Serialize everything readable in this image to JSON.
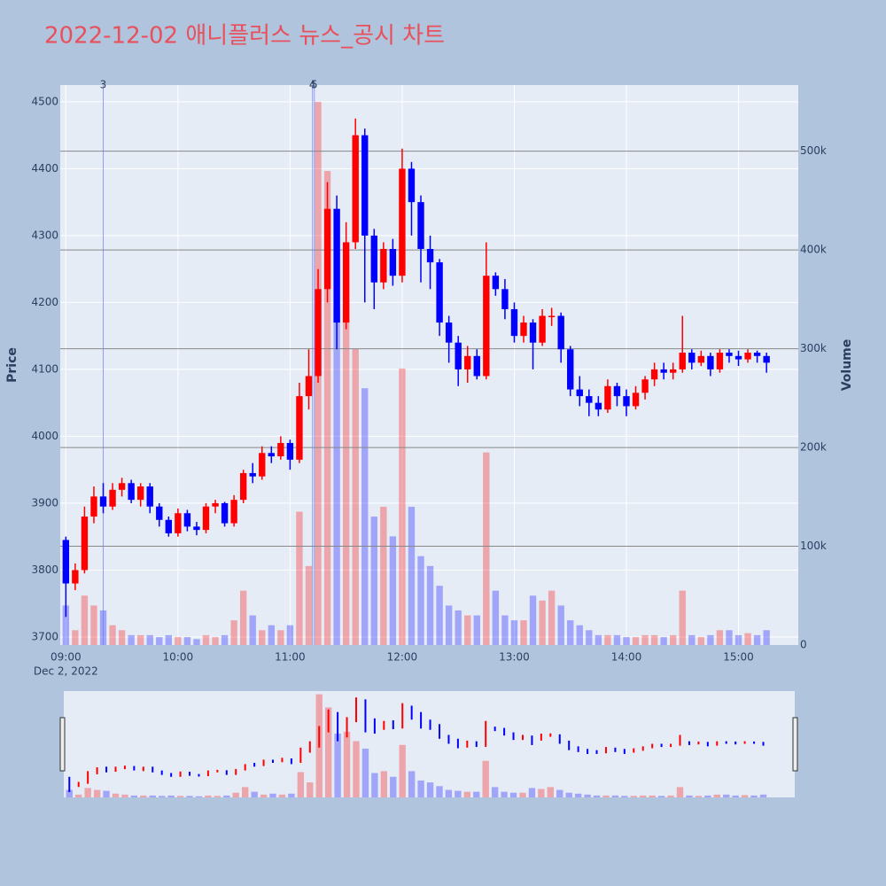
{
  "chart_data": {
    "type": "candlestick",
    "title": "2022-12-02 애니플러스 뉴스_공시 차트",
    "y_label": "Price",
    "y2_label": "Volume",
    "date_label": "Dec 2, 2022",
    "x": [
      "09:00",
      "09:05",
      "09:10",
      "09:15",
      "09:20",
      "09:25",
      "09:30",
      "09:35",
      "09:40",
      "09:45",
      "09:50",
      "09:55",
      "10:00",
      "10:05",
      "10:10",
      "10:15",
      "10:20",
      "10:25",
      "10:30",
      "10:35",
      "10:40",
      "10:45",
      "10:50",
      "10:55",
      "11:00",
      "11:05",
      "11:10",
      "11:15",
      "11:20",
      "11:25",
      "11:30",
      "11:35",
      "11:40",
      "11:45",
      "11:50",
      "11:55",
      "12:00",
      "12:05",
      "12:10",
      "12:15",
      "12:20",
      "12:25",
      "12:30",
      "12:35",
      "12:40",
      "12:45",
      "12:50",
      "12:55",
      "13:00",
      "13:05",
      "13:10",
      "13:15",
      "13:20",
      "13:25",
      "13:30",
      "13:35",
      "13:40",
      "13:45",
      "13:50",
      "13:55",
      "14:00",
      "14:05",
      "14:10",
      "14:15",
      "14:20",
      "14:25",
      "14:30",
      "14:35",
      "14:40",
      "14:45",
      "14:50",
      "14:55",
      "15:00",
      "15:05",
      "15:10",
      "15:15"
    ],
    "open": [
      3845,
      3780,
      3800,
      3880,
      3910,
      3895,
      3920,
      3930,
      3905,
      3925,
      3895,
      3875,
      3855,
      3885,
      3865,
      3860,
      3895,
      3900,
      3870,
      3905,
      3945,
      3940,
      3975,
      3970,
      3990,
      3965,
      4060,
      4090,
      4220,
      4340,
      4170,
      4290,
      4450,
      4300,
      4230,
      4280,
      4240,
      4400,
      4350,
      4280,
      4260,
      4170,
      4140,
      4100,
      4120,
      4090,
      4240,
      4220,
      4190,
      4150,
      4170,
      4140,
      4180,
      4180,
      4130,
      4070,
      4060,
      4050,
      4040,
      4075,
      4060,
      4045,
      4065,
      4085,
      4100,
      4095,
      4100,
      4125,
      4110,
      4120,
      4100,
      4125,
      4120,
      4115,
      4125,
      4120
    ],
    "high": [
      3850,
      3810,
      3895,
      3925,
      3930,
      3930,
      3938,
      3935,
      3930,
      3930,
      3900,
      3880,
      3892,
      3890,
      3872,
      3900,
      3905,
      3902,
      3912,
      3950,
      3960,
      3985,
      3985,
      4000,
      3995,
      4080,
      4130,
      4250,
      4380,
      4360,
      4320,
      4475,
      4460,
      4310,
      4290,
      4295,
      4430,
      4410,
      4360,
      4300,
      4265,
      4180,
      4150,
      4135,
      4130,
      4290,
      4245,
      4235,
      4200,
      4180,
      4175,
      4190,
      4192,
      4185,
      4135,
      4090,
      4070,
      4060,
      4085,
      4080,
      4070,
      4075,
      4090,
      4110,
      4110,
      4110,
      4180,
      4130,
      4128,
      4125,
      4130,
      4130,
      4128,
      4130,
      4128,
      4125
    ],
    "low": [
      3730,
      3770,
      3795,
      3870,
      3885,
      3890,
      3910,
      3900,
      3895,
      3885,
      3865,
      3850,
      3850,
      3858,
      3852,
      3855,
      3885,
      3865,
      3865,
      3900,
      3930,
      3935,
      3960,
      3965,
      3950,
      3960,
      4040,
      4080,
      4200,
      4130,
      4160,
      4280,
      4200,
      4190,
      4220,
      4225,
      4230,
      4300,
      4230,
      4220,
      4150,
      4110,
      4075,
      4080,
      4085,
      4085,
      4210,
      4175,
      4140,
      4140,
      4100,
      4135,
      4165,
      4110,
      4060,
      4045,
      4030,
      4030,
      4035,
      4045,
      4030,
      4040,
      4055,
      4075,
      4085,
      4085,
      4095,
      4100,
      4105,
      4090,
      4095,
      4110,
      4105,
      4110,
      4110,
      4095
    ],
    "close": [
      3780,
      3800,
      3880,
      3910,
      3895,
      3920,
      3930,
      3905,
      3925,
      3895,
      3875,
      3855,
      3885,
      3865,
      3860,
      3895,
      3900,
      3870,
      3905,
      3945,
      3940,
      3975,
      3970,
      3990,
      3965,
      4060,
      4090,
      4220,
      4340,
      4170,
      4290,
      4450,
      4300,
      4230,
      4280,
      4240,
      4400,
      4350,
      4280,
      4260,
      4170,
      4140,
      4100,
      4120,
      4090,
      4240,
      4220,
      4190,
      4150,
      4170,
      4140,
      4180,
      4180,
      4130,
      4070,
      4060,
      4050,
      4040,
      4075,
      4060,
      4045,
      4065,
      4085,
      4100,
      4095,
      4100,
      4125,
      4110,
      4120,
      4100,
      4125,
      4120,
      4115,
      4125,
      4120,
      4110
    ],
    "volume": [
      40000,
      15000,
      50000,
      40000,
      35000,
      20000,
      15000,
      10000,
      10000,
      10000,
      8000,
      10000,
      8000,
      8000,
      6000,
      10000,
      8000,
      10000,
      25000,
      55000,
      30000,
      15000,
      20000,
      15000,
      20000,
      135000,
      80000,
      550000,
      480000,
      340000,
      350000,
      300000,
      260000,
      130000,
      140000,
      110000,
      280000,
      140000,
      90000,
      80000,
      60000,
      40000,
      35000,
      30000,
      30000,
      195000,
      55000,
      30000,
      25000,
      25000,
      50000,
      45000,
      55000,
      40000,
      25000,
      20000,
      15000,
      10000,
      10000,
      10000,
      8000,
      8000,
      10000,
      10000,
      8000,
      10000,
      55000,
      10000,
      8000,
      10000,
      15000,
      15000,
      10000,
      12000,
      10000,
      15000
    ],
    "up_color": "#ff0000",
    "down_color": "#0000ff",
    "annotations": [
      {
        "x": "09:20",
        "text": "3"
      },
      {
        "x": "11:12",
        "text": "4"
      },
      {
        "x": "11:13",
        "text": "5"
      }
    ],
    "xlim": [
      "08:57",
      "15:32"
    ],
    "xticks": [
      "09:00",
      "10:00",
      "11:00",
      "12:00",
      "13:00",
      "14:00",
      "15:00"
    ],
    "ylim": [
      3688,
      4525
    ],
    "yticks": [
      3700,
      3800,
      3900,
      4000,
      4100,
      4200,
      4300,
      4400,
      4500
    ],
    "y2lim": [
      0,
      567000
    ],
    "y2ticks": [
      0,
      {
        "value": 100000,
        "label": "100k"
      },
      {
        "value": 200000,
        "label": "200k"
      },
      {
        "value": 300000,
        "label": "300k"
      },
      {
        "value": 400000,
        "label": "400k"
      },
      {
        "value": 500000,
        "label": "500k"
      }
    ],
    "grid": true
  }
}
